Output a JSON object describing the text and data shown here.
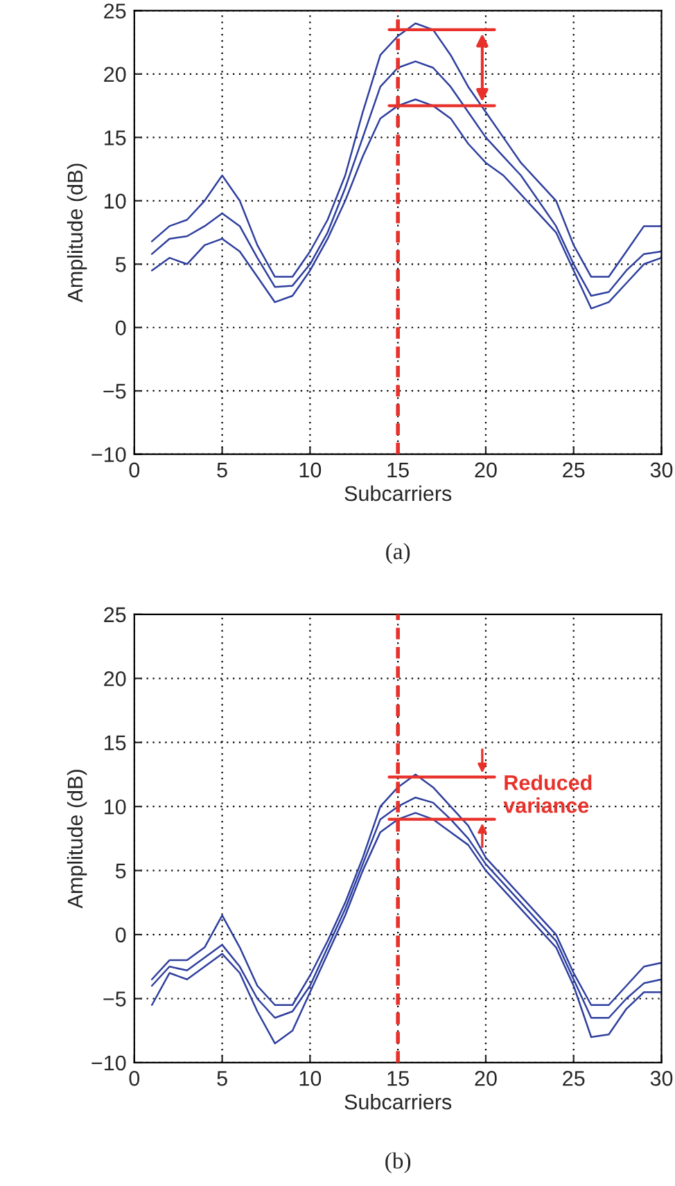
{
  "chart_data": [
    {
      "type": "line",
      "xlabel": "Subcarriers",
      "ylabel": "Amplitude (dB)",
      "x": [
        1,
        2,
        3,
        4,
        5,
        6,
        7,
        8,
        9,
        10,
        11,
        12,
        13,
        14,
        15,
        16,
        17,
        18,
        19,
        20,
        21,
        22,
        23,
        24,
        25,
        26,
        27,
        28,
        29,
        30
      ],
      "series": [
        {
          "color": "#2e3f9e",
          "values": [
            6.8,
            8,
            8.5,
            10,
            12,
            10,
            6.5,
            4,
            4,
            6,
            8.5,
            12,
            17,
            21.5,
            23,
            24,
            23.5,
            21.5,
            19,
            17,
            15,
            13,
            11.5,
            10,
            6.5,
            4,
            4,
            6,
            8,
            8
          ]
        },
        {
          "color": "#2e3f9e",
          "values": [
            5.8,
            7,
            7.2,
            8,
            9,
            8,
            5.5,
            3.2,
            3.3,
            5,
            7.5,
            11,
            15,
            19,
            20.5,
            21,
            20.5,
            19,
            17,
            15,
            13.5,
            12,
            10,
            8,
            5,
            2.5,
            2.8,
            4.5,
            5.8,
            6
          ]
        },
        {
          "color": "#2e3f9e",
          "values": [
            4.5,
            5.5,
            5,
            6.5,
            7,
            6,
            4,
            2,
            2.5,
            4.5,
            7,
            10,
            13.5,
            16.5,
            17.5,
            18,
            17.5,
            16.5,
            14.5,
            13,
            12,
            10.5,
            9,
            7.5,
            4.5,
            1.5,
            2,
            3.5,
            5,
            5.5
          ]
        }
      ],
      "xlim": [
        0,
        30
      ],
      "xticks": [
        0,
        5,
        10,
        15,
        20,
        25,
        30
      ],
      "ylim": [
        -10,
        25
      ],
      "yticks": [
        -10,
        -5,
        0,
        5,
        10,
        15,
        20,
        25
      ],
      "grid": true,
      "line_style": "solid",
      "marker": "none",
      "ref_lines": [
        {
          "axis": "x",
          "value": 15,
          "color": "#e8312a",
          "line_style": "dashed"
        },
        {
          "axis": "y",
          "value": 23.5,
          "color": "#e8312a",
          "line_style": "solid"
        },
        {
          "axis": "y",
          "value": 17.5,
          "color": "#e8312a",
          "line_style": "solid"
        }
      ],
      "annotations": [
        "(a)"
      ]
    },
    {
      "type": "line",
      "xlabel": "Subcarriers",
      "ylabel": "Amplitude (dB)",
      "x": [
        1,
        2,
        3,
        4,
        5,
        6,
        7,
        8,
        9,
        10,
        11,
        12,
        13,
        14,
        15,
        16,
        17,
        18,
        19,
        20,
        21,
        22,
        23,
        24,
        25,
        26,
        27,
        28,
        29,
        30
      ],
      "series": [
        {
          "color": "#2e3f9e",
          "values": [
            -3.5,
            -2,
            -2,
            -1,
            1.5,
            -1,
            -4,
            -5.5,
            -5.5,
            -3.2,
            -0.5,
            2.5,
            6,
            10,
            11.5,
            12.5,
            11.5,
            10,
            8.5,
            6,
            4.5,
            3,
            1.5,
            0,
            -3,
            -5.5,
            -5.5,
            -4,
            -2.5,
            -2.2
          ]
        },
        {
          "color": "#2e3f9e",
          "values": [
            -4,
            -2.5,
            -2.8,
            -1.8,
            -0.8,
            -2.5,
            -5,
            -6.5,
            -6,
            -4,
            -1,
            2,
            5.5,
            9,
            10,
            10.7,
            10.3,
            9,
            7.5,
            5.5,
            4,
            2.5,
            1,
            -0.5,
            -3.5,
            -6.5,
            -6.5,
            -5,
            -3.8,
            -3.5
          ]
        },
        {
          "color": "#2e3f9e",
          "values": [
            -5.5,
            -3,
            -3.5,
            -2.5,
            -1.5,
            -3,
            -6,
            -8.5,
            -7.5,
            -4.5,
            -1.5,
            1.5,
            5,
            8,
            9,
            9.5,
            9,
            8,
            7,
            5,
            3.5,
            2,
            0.5,
            -1,
            -4,
            -8,
            -7.8,
            -5.8,
            -4.5,
            -4.5
          ]
        }
      ],
      "xlim": [
        0,
        30
      ],
      "xticks": [
        0,
        5,
        10,
        15,
        20,
        25,
        30
      ],
      "ylim": [
        -10,
        25
      ],
      "yticks": [
        -10,
        -5,
        0,
        5,
        10,
        15,
        20,
        25
      ],
      "grid": true,
      "line_style": "solid",
      "marker": "none",
      "ref_lines": [
        {
          "axis": "x",
          "value": 15,
          "color": "#e8312a",
          "line_style": "dashed"
        },
        {
          "axis": "y",
          "value": 12.3,
          "color": "#e8312a",
          "line_style": "solid"
        },
        {
          "axis": "y",
          "value": 9,
          "color": "#e8312a",
          "line_style": "solid"
        }
      ],
      "annotations": [
        "Reduced\nvariance",
        "(b)"
      ]
    }
  ]
}
